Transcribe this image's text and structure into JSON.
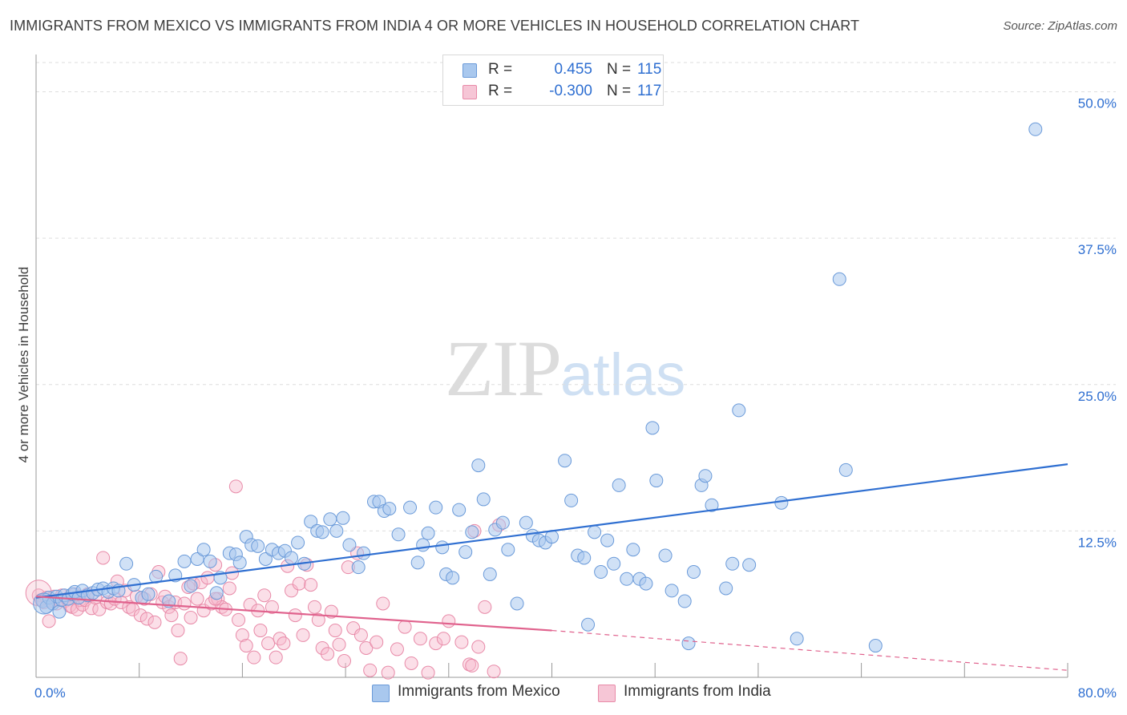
{
  "title": "IMMIGRANTS FROM MEXICO VS IMMIGRANTS FROM INDIA 4 OR MORE VEHICLES IN HOUSEHOLD CORRELATION CHART",
  "source": "Source: ZipAtlas.com",
  "watermark": {
    "zip": "ZIP",
    "atlas": "atlas"
  },
  "legend": {
    "r_label": "R =",
    "n_label": "N =",
    "rows": [
      {
        "r": "0.455",
        "n": "115"
      },
      {
        "r": "-0.300",
        "n": "117"
      }
    ]
  },
  "colors": {
    "mexico_fill": "#a9c8ee",
    "mexico_stroke": "#6a9ad9",
    "mexico_line": "#2f6fd1",
    "india_fill": "#f6b9cc",
    "india_stroke": "#e88aa8",
    "india_line": "#e0628d",
    "grid": "#dedede",
    "tick_label": "#2f6fd1"
  },
  "chart_data": {
    "type": "scatter",
    "title": "IMMIGRANTS FROM MEXICO VS IMMIGRANTS FROM INDIA 4 OR MORE VEHICLES IN HOUSEHOLD CORRELATION CHART",
    "xlabel": "",
    "ylabel": "4 or more Vehicles in Household",
    "xlim": [
      0,
      80
    ],
    "ylim": [
      0,
      52.5
    ],
    "x_tick_labels": [
      "0.0%",
      "80.0%"
    ],
    "y_ticks": [
      12.5,
      25.0,
      37.5,
      50.0
    ],
    "y_tick_labels": [
      "12.5%",
      "25.0%",
      "37.5%",
      "50.0%"
    ],
    "grid": "horizontal dashed",
    "legend_position": "top-center",
    "series": [
      {
        "name": "Immigrants from Mexico",
        "stats": {
          "R": 0.455,
          "N": 115
        },
        "trend": {
          "x": [
            0,
            80
          ],
          "y": [
            6.8,
            18.2
          ]
        },
        "points": [
          [
            0.5,
            6.5
          ],
          [
            0.8,
            6.0
          ],
          [
            1.0,
            6.8
          ],
          [
            1.3,
            6.3
          ],
          [
            1.6,
            6.9
          ],
          [
            1.8,
            5.6
          ],
          [
            2.0,
            6.6
          ],
          [
            2.2,
            7.0
          ],
          [
            2.5,
            6.7
          ],
          [
            2.8,
            7.1
          ],
          [
            3.0,
            7.3
          ],
          [
            3.3,
            6.8
          ],
          [
            3.6,
            7.4
          ],
          [
            4.0,
            7.0
          ],
          [
            4.4,
            7.2
          ],
          [
            4.8,
            7.5
          ],
          [
            5.2,
            7.6
          ],
          [
            5.6,
            7.3
          ],
          [
            6.0,
            7.6
          ],
          [
            6.4,
            7.4
          ],
          [
            7.0,
            9.7
          ],
          [
            7.6,
            7.9
          ],
          [
            8.2,
            6.8
          ],
          [
            8.7,
            7.1
          ],
          [
            9.3,
            8.6
          ],
          [
            10.3,
            6.5
          ],
          [
            10.8,
            8.7
          ],
          [
            11.5,
            9.9
          ],
          [
            12.0,
            7.8
          ],
          [
            12.5,
            10.1
          ],
          [
            13.0,
            10.9
          ],
          [
            13.5,
            9.9
          ],
          [
            14.0,
            7.2
          ],
          [
            14.3,
            8.5
          ],
          [
            15.0,
            10.6
          ],
          [
            15.5,
            10.5
          ],
          [
            15.8,
            9.8
          ],
          [
            16.3,
            12.0
          ],
          [
            16.7,
            11.3
          ],
          [
            17.2,
            11.2
          ],
          [
            17.8,
            10.1
          ],
          [
            18.3,
            10.9
          ],
          [
            18.8,
            10.6
          ],
          [
            19.3,
            10.8
          ],
          [
            19.8,
            10.2
          ],
          [
            20.3,
            11.5
          ],
          [
            20.8,
            9.7
          ],
          [
            21.3,
            13.3
          ],
          [
            21.8,
            12.5
          ],
          [
            22.2,
            12.4
          ],
          [
            22.8,
            13.5
          ],
          [
            23.3,
            12.5
          ],
          [
            23.8,
            13.6
          ],
          [
            24.3,
            11.3
          ],
          [
            25.0,
            9.4
          ],
          [
            25.4,
            10.6
          ],
          [
            26.2,
            15.0
          ],
          [
            26.6,
            15.0
          ],
          [
            27.0,
            14.2
          ],
          [
            27.4,
            14.4
          ],
          [
            28.1,
            12.2
          ],
          [
            29.0,
            14.5
          ],
          [
            29.6,
            9.8
          ],
          [
            30.0,
            11.3
          ],
          [
            30.4,
            12.3
          ],
          [
            31.0,
            14.5
          ],
          [
            31.5,
            11.1
          ],
          [
            31.8,
            8.8
          ],
          [
            32.3,
            8.5
          ],
          [
            32.8,
            14.3
          ],
          [
            33.3,
            10.7
          ],
          [
            33.8,
            12.4
          ],
          [
            34.3,
            18.1
          ],
          [
            34.7,
            15.2
          ],
          [
            35.2,
            8.8
          ],
          [
            35.6,
            12.6
          ],
          [
            36.2,
            13.2
          ],
          [
            36.6,
            10.9
          ],
          [
            37.3,
            6.3
          ],
          [
            38.0,
            13.2
          ],
          [
            38.5,
            12.1
          ],
          [
            39.0,
            11.7
          ],
          [
            39.5,
            11.5
          ],
          [
            40.0,
            12.0
          ],
          [
            41.0,
            18.5
          ],
          [
            41.5,
            15.1
          ],
          [
            42.0,
            10.4
          ],
          [
            42.5,
            10.2
          ],
          [
            42.8,
            4.5
          ],
          [
            43.3,
            12.4
          ],
          [
            43.8,
            9.0
          ],
          [
            44.3,
            11.7
          ],
          [
            44.8,
            9.7
          ],
          [
            45.2,
            16.4
          ],
          [
            45.8,
            8.4
          ],
          [
            46.3,
            10.9
          ],
          [
            46.8,
            8.4
          ],
          [
            47.3,
            8.0
          ],
          [
            47.8,
            21.3
          ],
          [
            48.1,
            16.8
          ],
          [
            48.8,
            10.4
          ],
          [
            49.3,
            7.4
          ],
          [
            50.3,
            6.5
          ],
          [
            50.6,
            2.9
          ],
          [
            51.0,
            9.0
          ],
          [
            51.6,
            16.4
          ],
          [
            51.9,
            17.2
          ],
          [
            52.4,
            14.7
          ],
          [
            53.5,
            7.6
          ],
          [
            54.0,
            9.7
          ],
          [
            54.5,
            22.8
          ],
          [
            55.3,
            9.6
          ],
          [
            57.8,
            14.9
          ],
          [
            59.0,
            3.3
          ],
          [
            62.3,
            34.0
          ],
          [
            62.8,
            17.7
          ],
          [
            65.1,
            2.7
          ],
          [
            77.5,
            46.8
          ]
        ]
      },
      {
        "name": "Immigrants from India",
        "stats": {
          "R": -0.3,
          "N": 117
        },
        "trend": {
          "x": [
            0,
            40,
            80
          ],
          "y": [
            6.9,
            4.0,
            0.6
          ]
        },
        "points": [
          [
            0.2,
            7.0
          ],
          [
            0.4,
            6.6
          ],
          [
            0.6,
            6.4
          ],
          [
            0.8,
            6.8
          ],
          [
            1.0,
            4.8
          ],
          [
            1.2,
            6.5
          ],
          [
            1.4,
            6.9
          ],
          [
            1.6,
            6.3
          ],
          [
            1.8,
            6.6
          ],
          [
            2.0,
            7.0
          ],
          [
            2.2,
            6.5
          ],
          [
            2.4,
            6.7
          ],
          [
            2.6,
            6.1
          ],
          [
            2.8,
            6.0
          ],
          [
            3.0,
            7.1
          ],
          [
            3.2,
            5.8
          ],
          [
            3.4,
            6.6
          ],
          [
            3.6,
            6.2
          ],
          [
            3.8,
            6.6
          ],
          [
            4.0,
            7.1
          ],
          [
            4.3,
            5.9
          ],
          [
            4.6,
            6.8
          ],
          [
            4.9,
            5.8
          ],
          [
            5.2,
            10.2
          ],
          [
            5.5,
            6.4
          ],
          [
            5.8,
            6.3
          ],
          [
            6.1,
            6.7
          ],
          [
            6.3,
            8.2
          ],
          [
            6.6,
            6.4
          ],
          [
            6.9,
            7.4
          ],
          [
            7.2,
            6.0
          ],
          [
            7.5,
            5.8
          ],
          [
            7.8,
            6.9
          ],
          [
            8.1,
            5.3
          ],
          [
            8.4,
            6.7
          ],
          [
            8.6,
            5.0
          ],
          [
            8.9,
            7.1
          ],
          [
            9.2,
            4.7
          ],
          [
            9.5,
            9.0
          ],
          [
            9.8,
            6.4
          ],
          [
            10.0,
            6.9
          ],
          [
            10.3,
            6.0
          ],
          [
            10.5,
            5.3
          ],
          [
            10.8,
            6.4
          ],
          [
            11.0,
            4.0
          ],
          [
            11.2,
            1.6
          ],
          [
            11.5,
            6.3
          ],
          [
            11.8,
            7.7
          ],
          [
            12.0,
            5.1
          ],
          [
            12.2,
            8.0
          ],
          [
            12.5,
            6.7
          ],
          [
            12.8,
            8.1
          ],
          [
            13.0,
            5.7
          ],
          [
            13.3,
            8.5
          ],
          [
            13.6,
            6.3
          ],
          [
            13.9,
            9.6
          ],
          [
            14.1,
            6.7
          ],
          [
            14.4,
            6.0
          ],
          [
            14.7,
            5.8
          ],
          [
            15.0,
            7.6
          ],
          [
            15.2,
            8.9
          ],
          [
            15.5,
            16.3
          ],
          [
            15.7,
            4.9
          ],
          [
            16.0,
            3.6
          ],
          [
            16.3,
            2.7
          ],
          [
            16.6,
            6.2
          ],
          [
            16.9,
            1.7
          ],
          [
            17.2,
            5.7
          ],
          [
            17.4,
            4.0
          ],
          [
            17.7,
            7.0
          ],
          [
            18.0,
            2.9
          ],
          [
            18.3,
            6.0
          ],
          [
            18.6,
            1.7
          ],
          [
            18.9,
            3.3
          ],
          [
            19.2,
            2.9
          ],
          [
            19.5,
            9.5
          ],
          [
            19.8,
            7.4
          ],
          [
            20.1,
            5.3
          ],
          [
            20.4,
            8.0
          ],
          [
            20.7,
            3.6
          ],
          [
            21.0,
            9.6
          ],
          [
            21.3,
            7.9
          ],
          [
            21.6,
            6.0
          ],
          [
            21.9,
            4.9
          ],
          [
            22.2,
            2.5
          ],
          [
            22.6,
            2.0
          ],
          [
            22.9,
            5.6
          ],
          [
            23.2,
            4.0
          ],
          [
            23.5,
            2.8
          ],
          [
            23.9,
            1.4
          ],
          [
            24.2,
            9.4
          ],
          [
            24.6,
            4.2
          ],
          [
            24.9,
            10.6
          ],
          [
            25.2,
            3.6
          ],
          [
            25.6,
            2.5
          ],
          [
            25.9,
            0.6
          ],
          [
            26.4,
            3.0
          ],
          [
            26.9,
            6.3
          ],
          [
            27.3,
            0.4
          ],
          [
            28.0,
            2.4
          ],
          [
            28.6,
            4.3
          ],
          [
            29.1,
            1.2
          ],
          [
            29.8,
            3.3
          ],
          [
            30.4,
            0.4
          ],
          [
            31.0,
            2.9
          ],
          [
            31.6,
            3.3
          ],
          [
            32.0,
            4.8
          ],
          [
            33.0,
            3.0
          ],
          [
            33.6,
            1.1
          ],
          [
            34.3,
            2.6
          ],
          [
            34.8,
            6.0
          ],
          [
            35.5,
            0.5
          ],
          [
            35.9,
            13.0
          ],
          [
            34.0,
            12.5
          ],
          [
            33.8,
            1.0
          ],
          [
            13.9,
            6.7
          ]
        ]
      }
    ]
  },
  "bottom_legend": [
    "Immigrants from Mexico",
    "Immigrants from India"
  ]
}
